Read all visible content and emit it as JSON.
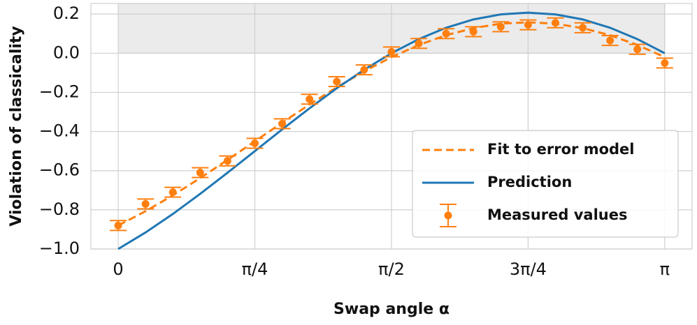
{
  "chart_data": {
    "type": "errorbar_line",
    "xlabel": "Swap angle α",
    "ylabel": "Violation of classicality",
    "x": [
      0,
      0.1571,
      0.3142,
      0.4712,
      0.6283,
      0.7854,
      0.9425,
      1.0996,
      1.2566,
      1.4137,
      1.5708,
      1.7279,
      1.885,
      2.042,
      2.1991,
      2.3562,
      2.5133,
      2.6704,
      2.8274,
      2.9845,
      3.1416
    ],
    "series": [
      {
        "name": "Fit to error model",
        "kind": "line",
        "dashed": true,
        "color": "#ff7f0e",
        "values": [
          -0.88,
          -0.807,
          -0.726,
          -0.638,
          -0.545,
          -0.45,
          -0.355,
          -0.262,
          -0.174,
          -0.0925,
          -0.02,
          0.042,
          0.092,
          0.128,
          0.151,
          0.158,
          0.151,
          0.128,
          0.092,
          0.042,
          -0.02
        ]
      },
      {
        "name": "Prediction",
        "kind": "line",
        "dashed": false,
        "color": "#1f77b4",
        "values": [
          -1,
          -0.9157,
          -0.8211,
          -0.7185,
          -0.6106,
          -0.5,
          -0.3894,
          -0.2815,
          -0.1789,
          -0.0843,
          0,
          0.0721,
          0.1301,
          0.1725,
          0.1984,
          0.2071,
          0.1984,
          0.1725,
          0.1301,
          0.0721,
          0
        ]
      },
      {
        "name": "Measured values",
        "kind": "errorbar",
        "color": "#ff7f0e",
        "values": [
          -0.88,
          -0.77,
          -0.71,
          -0.61,
          -0.55,
          -0.46,
          -0.36,
          -0.235,
          -0.145,
          -0.085,
          0.007,
          0.05,
          0.1,
          0.11,
          0.135,
          0.145,
          0.155,
          0.13,
          0.065,
          0.02,
          -0.05
        ],
        "errors": [
          0.025,
          0.025,
          0.025,
          0.025,
          0.025,
          0.025,
          0.025,
          0.025,
          0.025,
          0.025,
          0.025,
          0.025,
          0.025,
          0.025,
          0.025,
          0.025,
          0.025,
          0.025,
          0.025,
          0.025,
          0.025
        ]
      }
    ],
    "xlim": [
      -0.157,
      3.299
    ],
    "ylim": [
      -1.0,
      0.254
    ],
    "xticks": [
      0,
      {
        "value": 0.7854,
        "label": "π/4"
      },
      {
        "value": 1.5708,
        "label": "π/2"
      },
      {
        "value": 2.3562,
        "label": "3π/4"
      },
      {
        "value": 3.1416,
        "label": "π"
      }
    ],
    "yticks": [
      {
        "value": -1.0,
        "label": "−1.0"
      },
      {
        "value": -0.8,
        "label": "−0.8"
      },
      {
        "value": -0.6,
        "label": "−0.6"
      },
      {
        "value": -0.4,
        "label": "−0.4"
      },
      {
        "value": -0.2,
        "label": "−0.2"
      },
      {
        "value": 0.0,
        "label": "0.0"
      },
      {
        "value": 0.2,
        "label": "0.2"
      }
    ],
    "shaded_region": {
      "xlim": [
        0,
        3.1416
      ],
      "ylim": [
        0,
        0.254
      ],
      "color": "#ebebeb"
    },
    "grid": true,
    "legend": "lower right"
  }
}
